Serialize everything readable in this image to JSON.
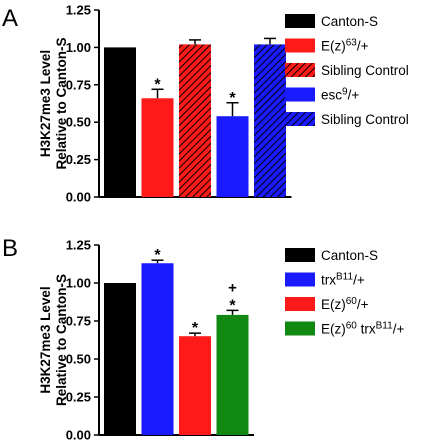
{
  "panels": [
    {
      "panel_label": "A",
      "chart_data": {
        "type": "bar",
        "ylabel_lines": [
          "H3K27me3 Level",
          "Relative to Canton-S"
        ],
        "ylim": [
          0,
          1.25
        ],
        "yticks": [
          "0.00",
          "0.25",
          "0.50",
          "0.75",
          "1.00",
          "1.25"
        ],
        "grid": false,
        "legend_position": "right",
        "bars": [
          {
            "value": 1.0,
            "error": 0.0,
            "color": "#000000",
            "hatched": false,
            "annotation": ""
          },
          {
            "value": 0.66,
            "error": 0.06,
            "color": "#ff1a1a",
            "hatched": false,
            "annotation": "*"
          },
          {
            "value": 1.02,
            "error": 0.03,
            "color": "#ff1a1a",
            "hatched": true,
            "annotation": ""
          },
          {
            "value": 0.54,
            "error": 0.09,
            "color": "#1a1aff",
            "hatched": false,
            "annotation": "*"
          },
          {
            "value": 1.02,
            "error": 0.04,
            "color": "#1a1aff",
            "hatched": true,
            "annotation": ""
          }
        ],
        "legend": [
          {
            "base": "Canton-S",
            "sup": "",
            "tail": "",
            "color": "#000000",
            "hatched": false
          },
          {
            "base": "E(z)",
            "sup": "63",
            "tail": "/+",
            "color": "#ff1a1a",
            "hatched": false
          },
          {
            "base": "Sibling Control",
            "sup": "",
            "tail": "",
            "color": "#ff1a1a",
            "hatched": true
          },
          {
            "base": "esc",
            "sup": "9",
            "tail": "/+",
            "color": "#1a1aff",
            "hatched": false
          },
          {
            "base": "Sibling Control",
            "sup": "",
            "tail": "",
            "color": "#1a1aff",
            "hatched": true
          }
        ]
      }
    },
    {
      "panel_label": "B",
      "chart_data": {
        "type": "bar",
        "ylabel_lines": [
          "H3K27me3 Level",
          "Relative to Canton-S"
        ],
        "ylim": [
          0,
          1.25
        ],
        "yticks": [
          "0.00",
          "0.25",
          "0.50",
          "0.75",
          "1.00",
          "1.25"
        ],
        "grid": false,
        "legend_position": "right",
        "bars": [
          {
            "value": 1.0,
            "error": 0.0,
            "color": "#000000",
            "hatched": false,
            "annotation": ""
          },
          {
            "value": 1.13,
            "error": 0.02,
            "color": "#1a1aff",
            "hatched": false,
            "annotation": "*"
          },
          {
            "value": 0.65,
            "error": 0.02,
            "color": "#ff1a1a",
            "hatched": false,
            "annotation": "*"
          },
          {
            "value": 0.79,
            "error": 0.03,
            "color": "#118811",
            "hatched": false,
            "annotation": "+\n*"
          }
        ],
        "legend": [
          {
            "base": "Canton-S",
            "sup": "",
            "tail": "",
            "color": "#000000",
            "hatched": false
          },
          {
            "base": "trx",
            "sup": "B11",
            "tail": "/+",
            "color": "#1a1aff",
            "hatched": false
          },
          {
            "base": "E(z)",
            "sup": "60",
            "tail": "/+",
            "color": "#ff1a1a",
            "hatched": false
          },
          {
            "base": "E(z)",
            "sup": "60",
            "tail": " trx",
            "sup2": "B11",
            "tail2": "/+",
            "color": "#118811",
            "hatched": false
          }
        ]
      }
    }
  ]
}
